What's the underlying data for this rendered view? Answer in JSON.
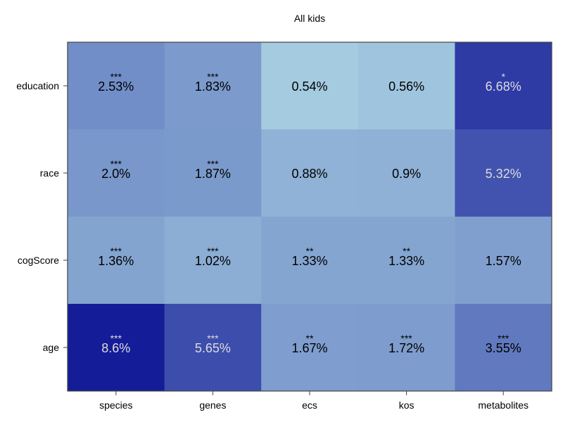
{
  "chart_data": {
    "type": "heatmap",
    "title": "All kids",
    "x_categories": [
      "species",
      "genes",
      "ecs",
      "kos",
      "metabolites"
    ],
    "y_categories": [
      "education",
      "race",
      "cogScore",
      "age"
    ],
    "value_unit": "%",
    "cells": [
      {
        "row": "education",
        "col": "species",
        "value": 2.53,
        "label": "2.53%",
        "sig": "***"
      },
      {
        "row": "education",
        "col": "genes",
        "value": 1.83,
        "label": "1.83%",
        "sig": "***"
      },
      {
        "row": "education",
        "col": "ecs",
        "value": 0.54,
        "label": "0.54%",
        "sig": ""
      },
      {
        "row": "education",
        "col": "kos",
        "value": 0.56,
        "label": "0.56%",
        "sig": ""
      },
      {
        "row": "education",
        "col": "metabolites",
        "value": 6.68,
        "label": "6.68%",
        "sig": "*"
      },
      {
        "row": "race",
        "col": "species",
        "value": 2.0,
        "label": "2.0%",
        "sig": "***"
      },
      {
        "row": "race",
        "col": "genes",
        "value": 1.87,
        "label": "1.87%",
        "sig": "***"
      },
      {
        "row": "race",
        "col": "ecs",
        "value": 0.88,
        "label": "0.88%",
        "sig": ""
      },
      {
        "row": "race",
        "col": "kos",
        "value": 0.9,
        "label": "0.9%",
        "sig": ""
      },
      {
        "row": "race",
        "col": "metabolites",
        "value": 5.32,
        "label": "5.32%",
        "sig": ""
      },
      {
        "row": "cogScore",
        "col": "species",
        "value": 1.36,
        "label": "1.36%",
        "sig": "***"
      },
      {
        "row": "cogScore",
        "col": "genes",
        "value": 1.02,
        "label": "1.02%",
        "sig": "***"
      },
      {
        "row": "cogScore",
        "col": "ecs",
        "value": 1.33,
        "label": "1.33%",
        "sig": "**"
      },
      {
        "row": "cogScore",
        "col": "kos",
        "value": 1.33,
        "label": "1.33%",
        "sig": "**"
      },
      {
        "row": "cogScore",
        "col": "metabolites",
        "value": 1.57,
        "label": "1.57%",
        "sig": ""
      },
      {
        "row": "age",
        "col": "species",
        "value": 8.6,
        "label": "8.6%",
        "sig": "***"
      },
      {
        "row": "age",
        "col": "genes",
        "value": 5.65,
        "label": "5.65%",
        "sig": "***"
      },
      {
        "row": "age",
        "col": "ecs",
        "value": 1.67,
        "label": "1.67%",
        "sig": "**"
      },
      {
        "row": "age",
        "col": "kos",
        "value": 1.72,
        "label": "1.72%",
        "sig": "***"
      },
      {
        "row": "age",
        "col": "metabolites",
        "value": 3.55,
        "label": "3.55%",
        "sig": "***"
      }
    ],
    "colors": {
      "scale_low": "#a4cbe0",
      "scale_mid": "#6d88c5",
      "scale_high": "#151c98",
      "text_dark": "#000000",
      "text_light": "#dcdcdc",
      "frame": "#444444"
    }
  }
}
